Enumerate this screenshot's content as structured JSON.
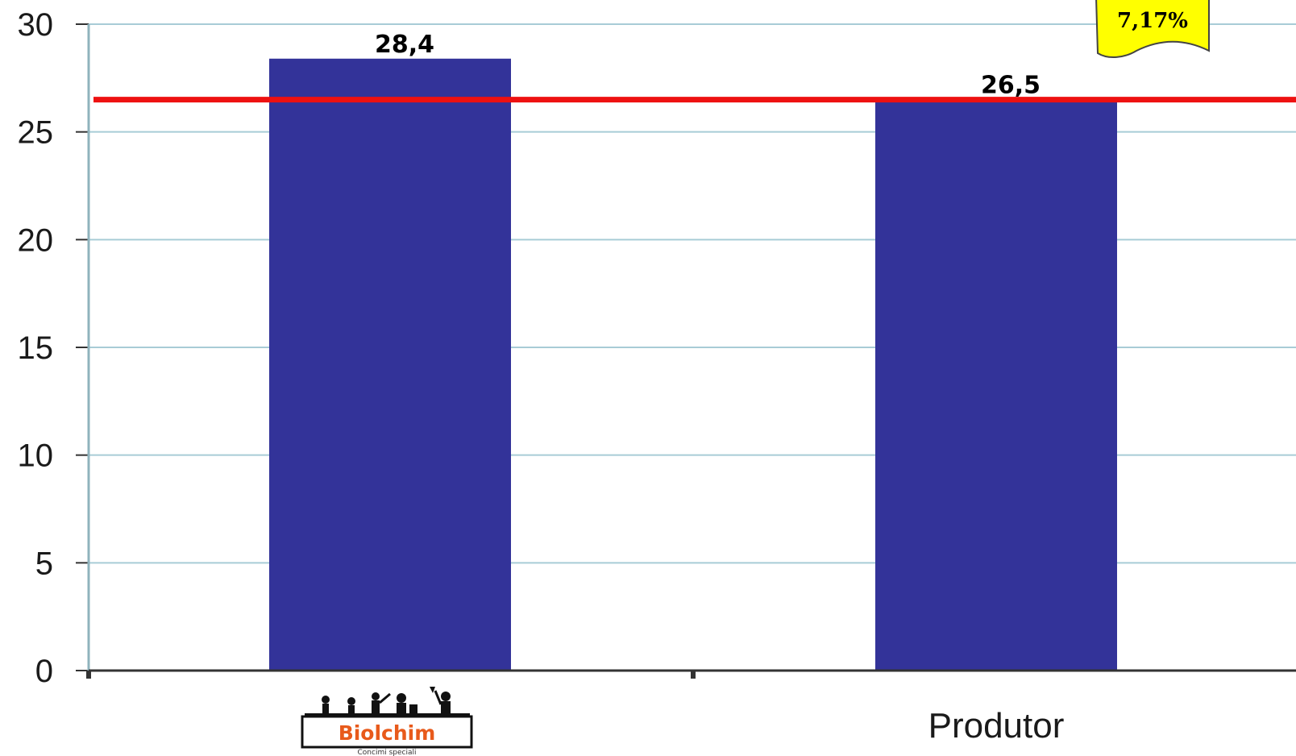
{
  "chart_data": {
    "type": "bar",
    "categories": [
      "Biolchim",
      "Produtor"
    ],
    "values": [
      28.4,
      26.5
    ],
    "data_labels": [
      "28,4",
      "26,5"
    ],
    "title": "",
    "xlabel": "",
    "ylabel": "",
    "ylim": [
      0,
      30
    ],
    "yticks": [
      "0",
      "5",
      "10",
      "15",
      "20",
      "25",
      "30"
    ],
    "grid": true,
    "legend": "none",
    "reference_line": {
      "value": 26.5,
      "color": "#ee1111"
    },
    "callout": {
      "text": "7,17%",
      "color": "#ffff00"
    },
    "colors": {
      "bar": "#333399",
      "grid": "#a8ccd6",
      "axis": "#333333"
    }
  },
  "logo": {
    "name": "Biolchim",
    "tagline": "Concimi speciali",
    "color": "#e85a1b"
  }
}
